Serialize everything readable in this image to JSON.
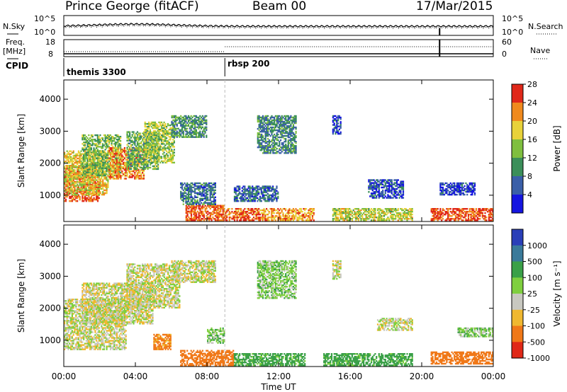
{
  "header": {
    "station": "Prince George (fitACF)",
    "beam": "Beam 00",
    "date": "17/Mar/2015"
  },
  "panels": {
    "nsky_label": "N.Sky",
    "nsearch_label": "N.Search",
    "freq_label_1": "Freq.",
    "freq_label_2": "[MHz]",
    "nave_label": "Nave",
    "cpid_label": "CPID",
    "nsky_ticks": [
      "10^5",
      "10^0"
    ],
    "nsearch_ticks": [
      "10^5",
      "10^0"
    ],
    "freq_ticks": [
      "18",
      "8"
    ],
    "nave_ticks": [
      "60",
      "0"
    ],
    "cpid_segments": [
      {
        "start": 0,
        "end": 9,
        "label": "themis 3300"
      },
      {
        "start": 9,
        "end": 24,
        "label": "rbsp 200"
      }
    ]
  },
  "chart_data": [
    {
      "type": "heatmap",
      "name": "power",
      "ylabel": "Slant Range [km]",
      "yticks": [
        "1000",
        "2000",
        "3000",
        "4000"
      ],
      "ylim": [
        180,
        4600
      ],
      "xlim": [
        0,
        24
      ],
      "colorbar_label": "Power [dB]",
      "colorbar_ticks": [
        "4",
        "8",
        "12",
        "16",
        "20",
        "24",
        "28"
      ],
      "colors": [
        "#1515e0",
        "#3a5fa8",
        "#3b8f5a",
        "#7fbf3f",
        "#e8d23a",
        "#f08a1e",
        "#e0281a"
      ],
      "regions": [
        {
          "t0": 0.0,
          "t1": 2.0,
          "r0": 800,
          "r1": 1900,
          "v": 27
        },
        {
          "t0": 0.0,
          "t1": 2.5,
          "r0": 1000,
          "r1": 2400,
          "v": 20
        },
        {
          "t0": 1.0,
          "t1": 3.2,
          "r0": 1600,
          "r1": 2900,
          "v": 15
        },
        {
          "t0": 2.5,
          "t1": 4.5,
          "r0": 1500,
          "r1": 2500,
          "v": 24
        },
        {
          "t0": 3.5,
          "t1": 5.3,
          "r0": 1800,
          "r1": 3000,
          "v": 14
        },
        {
          "t0": 4.5,
          "t1": 6.2,
          "r0": 2000,
          "r1": 3300,
          "v": 17
        },
        {
          "t0": 6.0,
          "t1": 8.0,
          "r0": 2800,
          "r1": 3500,
          "v": 12
        },
        {
          "t0": 6.8,
          "t1": 9.0,
          "r0": 200,
          "r1": 700,
          "v": 27
        },
        {
          "t0": 6.5,
          "t1": 8.5,
          "r0": 700,
          "r1": 1400,
          "v": 10
        },
        {
          "t0": 9.0,
          "t1": 11.0,
          "r0": 200,
          "r1": 600,
          "v": 26
        },
        {
          "t0": 9.5,
          "t1": 12.0,
          "r0": 800,
          "r1": 1300,
          "v": 9
        },
        {
          "t0": 10.8,
          "t1": 13.0,
          "r0": 2300,
          "r1": 3500,
          "v": 11
        },
        {
          "t0": 11.0,
          "t1": 14.0,
          "r0": 200,
          "r1": 600,
          "v": 23
        },
        {
          "t0": 15.0,
          "t1": 15.5,
          "r0": 2900,
          "r1": 3500,
          "v": 6
        },
        {
          "t0": 15.0,
          "t1": 19.5,
          "r0": 200,
          "r1": 600,
          "v": 18
        },
        {
          "t0": 17.0,
          "t1": 19.0,
          "r0": 900,
          "r1": 1500,
          "v": 7
        },
        {
          "t0": 20.5,
          "t1": 24.0,
          "r0": 200,
          "r1": 600,
          "v": 27
        },
        {
          "t0": 21.0,
          "t1": 23.0,
          "r0": 1000,
          "r1": 1400,
          "v": 6
        }
      ]
    },
    {
      "type": "heatmap",
      "name": "velocity",
      "ylabel": "Slant Range [km]",
      "yticks": [
        "1000",
        "2000",
        "3000",
        "4000"
      ],
      "ylim": [
        180,
        4600
      ],
      "xlim": [
        0,
        24
      ],
      "colorbar_label": "Velocity [m s⁻¹]",
      "colorbar_ticks": [
        "1000",
        "500",
        "100",
        "25",
        "-25",
        "-100",
        "-500",
        "-1000"
      ],
      "colors": [
        "#2a3fb8",
        "#3a7a9a",
        "#3aa048",
        "#7fcf3f",
        "#c8c8c0",
        "#f0b830",
        "#f07818",
        "#e02818"
      ],
      "regions": [
        {
          "t0": 0.0,
          "t1": 3.5,
          "r0": 700,
          "r1": 2300,
          "v": 0
        },
        {
          "t0": 1.0,
          "t1": 5.0,
          "r0": 1500,
          "r1": 2800,
          "v": 0
        },
        {
          "t0": 3.5,
          "t1": 6.5,
          "r0": 2000,
          "r1": 3400,
          "v": 0
        },
        {
          "t0": 6.0,
          "t1": 8.5,
          "r0": 2800,
          "r1": 3500,
          "v": 0
        },
        {
          "t0": 5.0,
          "t1": 6.0,
          "r0": 700,
          "r1": 1200,
          "v": -150
        },
        {
          "t0": 6.5,
          "t1": 9.5,
          "r0": 200,
          "r1": 700,
          "v": -300
        },
        {
          "t0": 8.0,
          "t1": 9.0,
          "r0": 900,
          "r1": 1400,
          "v": 60
        },
        {
          "t0": 9.5,
          "t1": 13.5,
          "r0": 200,
          "r1": 600,
          "v": 150
        },
        {
          "t0": 10.8,
          "t1": 13.0,
          "r0": 2300,
          "r1": 3500,
          "v": 60
        },
        {
          "t0": 15.0,
          "t1": 15.5,
          "r0": 2900,
          "r1": 3500,
          "v": 0
        },
        {
          "t0": 14.5,
          "t1": 19.5,
          "r0": 200,
          "r1": 600,
          "v": 150
        },
        {
          "t0": 17.5,
          "t1": 19.5,
          "r0": 1300,
          "r1": 1700,
          "v": 0
        },
        {
          "t0": 20.5,
          "t1": 24.0,
          "r0": 250,
          "r1": 650,
          "v": -200
        },
        {
          "t0": 22.0,
          "t1": 24.0,
          "r0": 1100,
          "r1": 1400,
          "v": 60
        }
      ]
    }
  ],
  "time_axis": {
    "ticks": [
      "00:00",
      "04:00",
      "08:00",
      "12:00",
      "16:00",
      "20:00",
      "00:00"
    ],
    "label": "Time UT"
  }
}
